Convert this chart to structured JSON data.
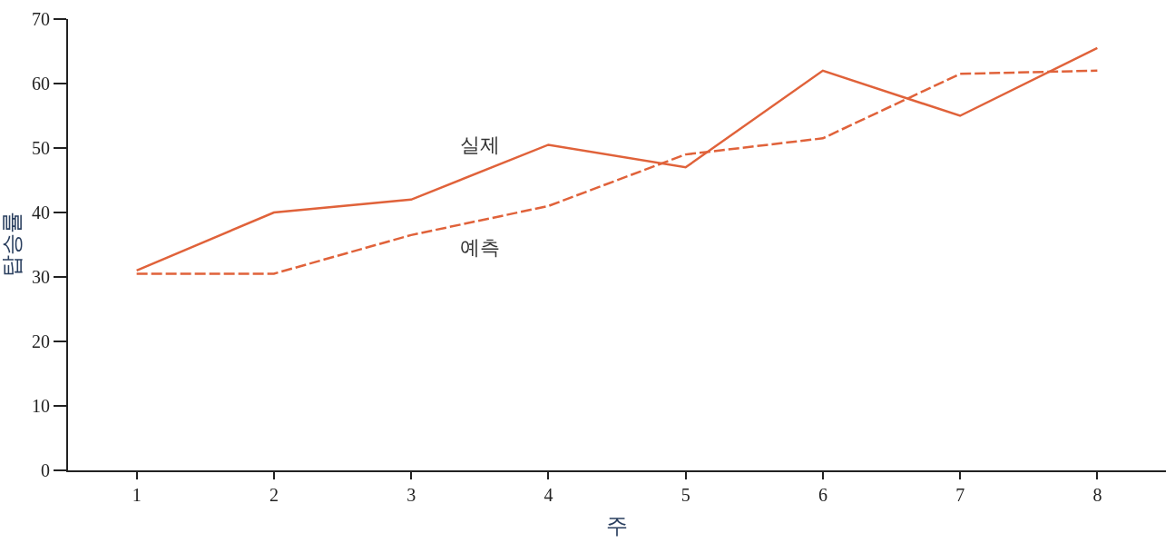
{
  "chart_data": {
    "type": "line",
    "xlabel": "주",
    "ylabel": "탑승률",
    "x": [
      1,
      2,
      3,
      4,
      5,
      6,
      7,
      8
    ],
    "series": [
      {
        "name": "실제",
        "color": "#e0623a",
        "line_style": "solid",
        "values": [
          31,
          40,
          42,
          50.5,
          47,
          62,
          55,
          65.5
        ]
      },
      {
        "name": "예측",
        "color": "#e0623a",
        "line_style": "dashed",
        "values": [
          30.5,
          30.5,
          36.5,
          41,
          49,
          51.5,
          61.5,
          62
        ]
      }
    ],
    "xlim": [
      0.5,
      8.5
    ],
    "ylim": [
      0,
      70
    ],
    "xticks": [
      1,
      2,
      3,
      4,
      5,
      6,
      7,
      8
    ],
    "yticks": [
      0,
      10,
      20,
      30,
      40,
      50,
      60,
      70
    ],
    "legend": false,
    "marker": "none"
  }
}
